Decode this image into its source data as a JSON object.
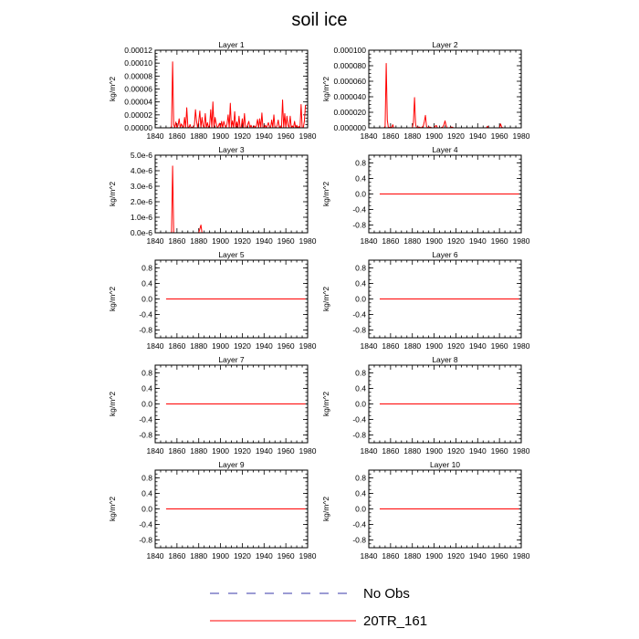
{
  "figure": {
    "title": "soil ice",
    "legend": [
      {
        "label": "No Obs",
        "color": "#3a3aa8",
        "dash": "dashed"
      },
      {
        "label": "20TR_161",
        "color": "#ff0000",
        "dash": "solid"
      }
    ]
  },
  "chart_data": [
    {
      "type": "line",
      "title": "Layer 1",
      "ylabel": "kg/m^2",
      "xlim": [
        1840,
        1980
      ],
      "ylim": [
        0,
        0.00012
      ],
      "xticks": [
        1840,
        1860,
        1880,
        1900,
        1920,
        1940,
        1960,
        1980
      ],
      "yticks": [
        0,
        2e-05,
        4e-05,
        6e-05,
        8e-05,
        0.0001,
        0.00012
      ],
      "ytick_labels": [
        "0.00000",
        "0.00002",
        "0.00004",
        "0.00006",
        "0.00008",
        "0.00010",
        "0.00012"
      ],
      "series": [
        {
          "color": "#ff0000",
          "x": [
            1850,
            1854,
            1855,
            1856,
            1857,
            1858,
            1859,
            1860,
            1861,
            1862,
            1863,
            1864,
            1865,
            1866,
            1867,
            1868,
            1869,
            1870,
            1871,
            1872,
            1873,
            1874,
            1875,
            1876,
            1877,
            1878,
            1879,
            1880,
            1881,
            1882,
            1883,
            1884,
            1885,
            1886,
            1887,
            1888,
            1889,
            1890,
            1891,
            1892,
            1893,
            1894,
            1895,
            1896,
            1897,
            1898,
            1899,
            1900,
            1901,
            1902,
            1903,
            1904,
            1905,
            1906,
            1907,
            1908,
            1909,
            1910,
            1911,
            1912,
            1913,
            1914,
            1915,
            1916,
            1917,
            1918,
            1919,
            1920,
            1921,
            1922,
            1923,
            1924,
            1925,
            1926,
            1927,
            1928,
            1929,
            1930,
            1931,
            1932,
            1933,
            1934,
            1935,
            1936,
            1937,
            1938,
            1939,
            1940,
            1941,
            1942,
            1943,
            1944,
            1945,
            1946,
            1947,
            1948,
            1949,
            1950,
            1951,
            1952,
            1953,
            1954,
            1955,
            1956,
            1957,
            1958,
            1959,
            1960,
            1961,
            1962,
            1963,
            1964,
            1965,
            1966,
            1967,
            1968,
            1969,
            1970,
            1971,
            1972,
            1973,
            1974,
            1975,
            1976,
            1977,
            1978
          ],
          "y": [
            0,
            0,
            2e-06,
            0.000102,
            5e-06,
            0,
            9e-06,
            0,
            4e-06,
            1.4e-05,
            0,
            6e-06,
            3e-06,
            0,
            1.6e-05,
            0,
            3.1e-05,
            2e-06,
            0,
            5e-06,
            0,
            1e-06,
            0,
            4e-06,
            2.8e-05,
            1e-05,
            0,
            1e-05,
            2.6e-05,
            0,
            1.6e-05,
            3e-06,
            0,
            2.2e-05,
            0,
            8e-06,
            0,
            4e-06,
            2.8e-05,
            0,
            4e-05,
            0,
            1.6e-05,
            7e-06,
            0,
            2e-06,
            7e-06,
            0,
            1e-05,
            0,
            1e-05,
            4e-06,
            0,
            6e-06,
            2e-05,
            0,
            3.8e-05,
            0,
            1.1e-05,
            0,
            2.5e-05,
            0,
            9e-06,
            0,
            1.8e-05,
            0,
            0,
            1.4e-05,
            0,
            2.2e-05,
            0,
            0,
            5e-06,
            1e-05,
            0,
            4e-06,
            0,
            0,
            3e-06,
            0,
            4e-06,
            1.3e-05,
            0,
            1.4e-05,
            0,
            2.3e-05,
            0,
            0,
            4e-06,
            0,
            4e-06,
            8e-06,
            0,
            0,
            1.2e-05,
            0,
            2e-05,
            0,
            0,
            4e-06,
            1.2e-05,
            0,
            2e-06,
            0,
            4.3e-05,
            0,
            2.2e-05,
            0,
            1.8e-05,
            4e-06,
            0,
            1.8e-05,
            0,
            3e-06,
            0,
            1e-05,
            0,
            4e-06,
            0,
            2e-06,
            0,
            3.6e-05,
            0,
            0,
            1e-05,
            3.5e-05
          ]
        }
      ]
    },
    {
      "type": "line",
      "title": "Layer 2",
      "ylabel": "kg/m^2",
      "xlim": [
        1840,
        1980
      ],
      "ylim": [
        0,
        0.0001
      ],
      "xticks": [
        1840,
        1860,
        1880,
        1900,
        1920,
        1940,
        1960,
        1980
      ],
      "yticks": [
        0,
        2e-05,
        4e-05,
        6e-05,
        8e-05,
        0.0001
      ],
      "ytick_labels": [
        "0.000000",
        "0.000020",
        "0.000040",
        "0.000060",
        "0.000080",
        "0.000100"
      ],
      "series": [
        {
          "color": "#ff0000",
          "x": [
            1850,
            1854,
            1855,
            1856,
            1857,
            1858,
            1860,
            1861,
            1862,
            1863,
            1864,
            1866,
            1868,
            1870,
            1872,
            1874,
            1876,
            1878,
            1880,
            1881,
            1882,
            1883,
            1884,
            1886,
            1888,
            1890,
            1891,
            1892,
            1893,
            1894,
            1896,
            1898,
            1900,
            1901,
            1902,
            1903,
            1904,
            1906,
            1908,
            1909,
            1910,
            1911,
            1912,
            1914,
            1916,
            1918,
            1920,
            1930,
            1940,
            1948,
            1949,
            1950,
            1958,
            1960,
            1961,
            1962,
            1963,
            1970,
            1978
          ],
          "y": [
            0,
            0,
            2e-06,
            8.3e-05,
            1e-05,
            0,
            1e-06,
            0,
            4e-06,
            0,
            0,
            0,
            0,
            0,
            0,
            0,
            0,
            0,
            0,
            7e-06,
            3.9e-05,
            4e-06,
            0,
            1e-06,
            0,
            2e-06,
            8e-06,
            1.6e-05,
            2e-06,
            0,
            1e-06,
            0,
            0,
            2e-06,
            3e-06,
            0,
            0,
            0,
            1e-06,
            4e-06,
            9e-06,
            3e-06,
            0,
            0,
            1e-06,
            0,
            0,
            0,
            0,
            0,
            2e-06,
            0,
            0,
            0,
            5e-06,
            1e-06,
            0,
            0,
            0
          ]
        }
      ]
    },
    {
      "type": "line",
      "title": "Layer 3",
      "ylabel": "kg/m^2",
      "xlim": [
        1840,
        1980
      ],
      "ylim": [
        0,
        5e-06
      ],
      "xticks": [
        1840,
        1860,
        1880,
        1900,
        1920,
        1940,
        1960,
        1980
      ],
      "yticks": [
        0,
        1e-06,
        2e-06,
        3e-06,
        4e-06,
        5e-06
      ],
      "ytick_labels": [
        "0.0e-6",
        "1.0e-6",
        "2.0e-6",
        "3.0e-6",
        "4.0e-6",
        "5.0e-6"
      ],
      "series": [
        {
          "color": "#ff0000",
          "x": [
            1850,
            1855,
            1856,
            1857,
            1858,
            1880,
            1881,
            1882,
            1883,
            1978
          ],
          "y": [
            0,
            0,
            4.3e-06,
            0,
            0,
            0,
            2.5e-07,
            5e-07,
            0,
            0
          ]
        }
      ]
    },
    {
      "type": "line",
      "title": "Layer 4",
      "ylabel": "kg/m^2",
      "xlim": [
        1840,
        1980
      ],
      "ylim": [
        -1,
        1
      ],
      "xticks": [
        1840,
        1860,
        1880,
        1900,
        1920,
        1940,
        1960,
        1980
      ],
      "yticks": [
        -0.8,
        -0.4,
        0,
        0.4,
        0.8
      ],
      "ytick_labels": [
        "-0.8",
        "-0.4",
        "0.0",
        "0.4",
        "0.8"
      ],
      "series": [
        {
          "color": "#ff0000",
          "x": [
            1850,
            1978
          ],
          "y": [
            0,
            0
          ]
        }
      ]
    },
    {
      "type": "line",
      "title": "Layer 5",
      "ylabel": "kg/m^2",
      "xlim": [
        1840,
        1980
      ],
      "ylim": [
        -1,
        1
      ],
      "xticks": [
        1840,
        1860,
        1880,
        1900,
        1920,
        1940,
        1960,
        1980
      ],
      "yticks": [
        -0.8,
        -0.4,
        0,
        0.4,
        0.8
      ],
      "ytick_labels": [
        "-0.8",
        "-0.4",
        "0.0",
        "0.4",
        "0.8"
      ],
      "series": [
        {
          "color": "#ff0000",
          "x": [
            1850,
            1978
          ],
          "y": [
            0,
            0
          ]
        }
      ]
    },
    {
      "type": "line",
      "title": "Layer 6",
      "ylabel": "kg/m^2",
      "xlim": [
        1840,
        1980
      ],
      "ylim": [
        -1,
        1
      ],
      "xticks": [
        1840,
        1860,
        1880,
        1900,
        1920,
        1940,
        1960,
        1980
      ],
      "yticks": [
        -0.8,
        -0.4,
        0,
        0.4,
        0.8
      ],
      "ytick_labels": [
        "-0.8",
        "-0.4",
        "0.0",
        "0.4",
        "0.8"
      ],
      "series": [
        {
          "color": "#ff0000",
          "x": [
            1850,
            1978
          ],
          "y": [
            0,
            0
          ]
        }
      ]
    },
    {
      "type": "line",
      "title": "Layer 7",
      "ylabel": "kg/m^2",
      "xlim": [
        1840,
        1980
      ],
      "ylim": [
        -1,
        1
      ],
      "xticks": [
        1840,
        1860,
        1880,
        1900,
        1920,
        1940,
        1960,
        1980
      ],
      "yticks": [
        -0.8,
        -0.4,
        0,
        0.4,
        0.8
      ],
      "ytick_labels": [
        "-0.8",
        "-0.4",
        "0.0",
        "0.4",
        "0.8"
      ],
      "series": [
        {
          "color": "#ff0000",
          "x": [
            1850,
            1978
          ],
          "y": [
            0,
            0
          ]
        }
      ]
    },
    {
      "type": "line",
      "title": "Layer 8",
      "ylabel": "kg/m^2",
      "xlim": [
        1840,
        1980
      ],
      "ylim": [
        -1,
        1
      ],
      "xticks": [
        1840,
        1860,
        1880,
        1900,
        1920,
        1940,
        1960,
        1980
      ],
      "yticks": [
        -0.8,
        -0.4,
        0,
        0.4,
        0.8
      ],
      "ytick_labels": [
        "-0.8",
        "-0.4",
        "0.0",
        "0.4",
        "0.8"
      ],
      "series": [
        {
          "color": "#ff0000",
          "x": [
            1850,
            1978
          ],
          "y": [
            0,
            0
          ]
        }
      ]
    },
    {
      "type": "line",
      "title": "Layer 9",
      "ylabel": "kg/m^2",
      "xlim": [
        1840,
        1980
      ],
      "ylim": [
        -1,
        1
      ],
      "xticks": [
        1840,
        1860,
        1880,
        1900,
        1920,
        1940,
        1960,
        1980
      ],
      "yticks": [
        -0.8,
        -0.4,
        0,
        0.4,
        0.8
      ],
      "ytick_labels": [
        "-0.8",
        "-0.4",
        "0.0",
        "0.4",
        "0.8"
      ],
      "series": [
        {
          "color": "#ff0000",
          "x": [
            1850,
            1978
          ],
          "y": [
            0,
            0
          ]
        }
      ]
    },
    {
      "type": "line",
      "title": "Layer 10",
      "ylabel": "kg/m^2",
      "xlim": [
        1840,
        1980
      ],
      "ylim": [
        -1,
        1
      ],
      "xticks": [
        1840,
        1860,
        1880,
        1900,
        1920,
        1940,
        1960,
        1980
      ],
      "yticks": [
        -0.8,
        -0.4,
        0,
        0.4,
        0.8
      ],
      "ytick_labels": [
        "-0.8",
        "-0.4",
        "0.0",
        "0.4",
        "0.8"
      ],
      "series": [
        {
          "color": "#ff0000",
          "x": [
            1850,
            1978
          ],
          "y": [
            0,
            0
          ]
        }
      ]
    }
  ]
}
